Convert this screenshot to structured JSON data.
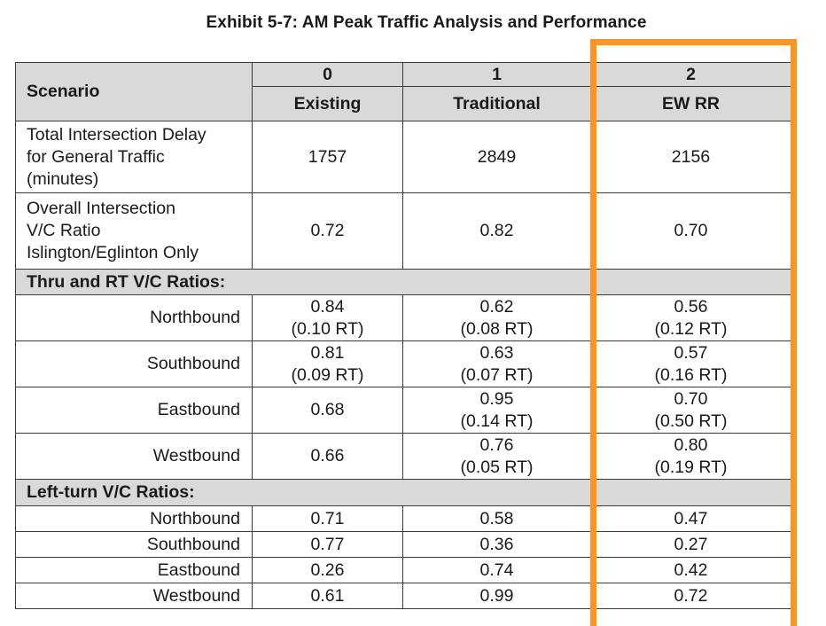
{
  "title": "Exhibit 5-7: AM Peak Traffic Analysis and Performance",
  "colors": {
    "header_bg": "#d9d9d9",
    "highlight": "#f4962e",
    "border": "#3a3a3a"
  },
  "header": {
    "scenario_label": "Scenario",
    "numbers": [
      "0",
      "1",
      "2"
    ],
    "names": [
      "Existing",
      "Traditional",
      "EW RR"
    ]
  },
  "rows": {
    "total_delay": {
      "label_lines": [
        "Total Intersection Delay",
        "for General Traffic",
        "(minutes)"
      ],
      "values": [
        "1757",
        "2849",
        "2156"
      ]
    },
    "overall_vc": {
      "label_lines": [
        "Overall Intersection",
        "V/C Ratio",
        "Islington/Eglinton Only"
      ],
      "values": [
        "0.72",
        "0.82",
        "0.70"
      ]
    }
  },
  "thru_rt": {
    "section_label": "Thru and RT V/C Ratios:",
    "rows": [
      {
        "dir": "Northbound",
        "cells": [
          {
            "v": "0.84",
            "rt": "(0.10 RT)"
          },
          {
            "v": "0.62",
            "rt": "(0.08 RT)"
          },
          {
            "v": "0.56",
            "rt": "(0.12 RT)"
          }
        ]
      },
      {
        "dir": "Southbound",
        "cells": [
          {
            "v": "0.81",
            "rt": "(0.09 RT)"
          },
          {
            "v": "0.63",
            "rt": "(0.07 RT)"
          },
          {
            "v": "0.57",
            "rt": "(0.16 RT)"
          }
        ]
      },
      {
        "dir": "Eastbound",
        "cells": [
          {
            "v": "0.68",
            "rt": ""
          },
          {
            "v": "0.95",
            "rt": "(0.14 RT)"
          },
          {
            "v": "0.70",
            "rt": "(0.50 RT)"
          }
        ]
      },
      {
        "dir": "Westbound",
        "cells": [
          {
            "v": "0.66",
            "rt": ""
          },
          {
            "v": "0.76",
            "rt": "(0.05 RT)"
          },
          {
            "v": "0.80",
            "rt": "(0.19 RT)"
          }
        ]
      }
    ]
  },
  "left_turn": {
    "section_label": "Left-turn V/C Ratios:",
    "rows": [
      {
        "dir": "Northbound",
        "values": [
          "0.71",
          "0.58",
          "0.47"
        ]
      },
      {
        "dir": "Southbound",
        "values": [
          "0.77",
          "0.36",
          "0.27"
        ]
      },
      {
        "dir": "Eastbound",
        "values": [
          "0.26",
          "0.74",
          "0.42"
        ]
      },
      {
        "dir": "Westbound",
        "values": [
          "0.61",
          "0.99",
          "0.72"
        ]
      }
    ]
  }
}
